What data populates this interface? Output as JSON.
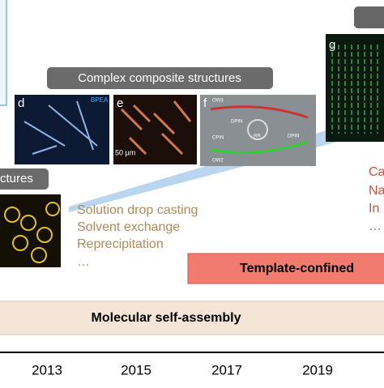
{
  "labels": {
    "complex": "Complex composite structures",
    "simple": "ctures"
  },
  "panels": {
    "d": "d",
    "d_tag": "BPEA",
    "e": "e",
    "e_scale": "50 μm",
    "f": "f",
    "f_tags": [
      "OW3",
      "DPIN",
      "CPIN",
      "RR",
      "DPIN",
      "OW2"
    ],
    "g": "g"
  },
  "methods_left": [
    "Solution drop casting",
    "Solvent exchange",
    "Reprecipitation",
    "…"
  ],
  "methods_right": [
    "Ca",
    "Na",
    "In",
    "…"
  ],
  "bars": {
    "template": "Template-confined",
    "molecular": "Molecular self-assembly"
  },
  "years": [
    "2013",
    "2015",
    "2017",
    "2019"
  ]
}
